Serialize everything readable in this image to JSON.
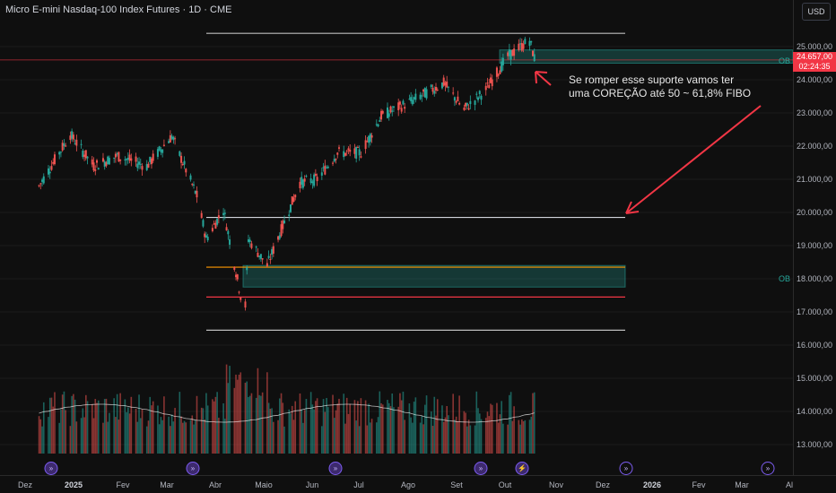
{
  "header": {
    "title": "Micro E-mini Nasdaq-100 Index Futures · 1D · CME",
    "currency_label": "USD"
  },
  "price_axis": {
    "labels": [
      "25.000,00",
      "24.000,00",
      "23.000,00",
      "22.000,00",
      "21.000,00",
      "20.000,00",
      "19.000,00",
      "18.000,00",
      "17.000,00",
      "16.000,00",
      "15.000,00",
      "14.000,00",
      "13.000,00"
    ]
  },
  "last_price": {
    "price": "24.657,00",
    "countdown": "02:24:35"
  },
  "time_axis": {
    "labels": [
      "Dez",
      "2025",
      "Fev",
      "Mar",
      "Abr",
      "Maio",
      "Jun",
      "Jul",
      "Ago",
      "Set",
      "Out",
      "Nov",
      "Dez",
      "2026",
      "Fev",
      "Mar",
      "Al"
    ]
  },
  "annotation": {
    "line1": "Se romper esse suporte vamos ter",
    "line2": "uma COREÇÃO até 50 ~ 61,8% FIBO"
  },
  "zones": {
    "upper_label": "OB",
    "lower_label": "OB"
  },
  "colors": {
    "up": "#26a69a",
    "down": "#ef5350",
    "annotation_arrow": "#f23645",
    "orange_line": "#ff9800",
    "red_line": "#f23645",
    "white_line": "#d1d4dc"
  },
  "event_icons": [
    "dividend-icon",
    "dividend-icon",
    "dividend-icon",
    "dividend-icon",
    "flash-icon",
    "dividend-icon",
    "dividend-icon"
  ],
  "chart_data": {
    "type": "candlestick",
    "ylim": [
      12600,
      25900
    ],
    "horizontal_levels": [
      25400,
      24600,
      19850,
      18350,
      17450,
      16450
    ],
    "ob_zones": [
      [
        24500,
        24900
      ],
      [
        17750,
        18400
      ]
    ],
    "close_path": [
      {
        "x": "2024-11-26",
        "y": 20800
      },
      {
        "x": "2024-12-16",
        "y": 22350
      },
      {
        "x": "2024-12-31",
        "y": 21400
      },
      {
        "x": "2025-01-15",
        "y": 21700
      },
      {
        "x": "2025-02-03",
        "y": 21400
      },
      {
        "x": "2025-02-19",
        "y": 22300
      },
      {
        "x": "2025-03-07",
        "y": 20500
      },
      {
        "x": "2025-03-13",
        "y": 19200
      },
      {
        "x": "2025-03-24",
        "y": 20100
      },
      {
        "x": "2025-04-04",
        "y": 17500
      },
      {
        "x": "2025-04-07",
        "y": 17200
      },
      {
        "x": "2025-04-09",
        "y": 19200
      },
      {
        "x": "2025-04-21",
        "y": 18400
      },
      {
        "x": "2025-05-12",
        "y": 20900
      },
      {
        "x": "2025-05-23",
        "y": 21000
      },
      {
        "x": "2025-06-05",
        "y": 21800
      },
      {
        "x": "2025-06-20",
        "y": 21800
      },
      {
        "x": "2025-07-03",
        "y": 22900
      },
      {
        "x": "2025-07-24",
        "y": 23400
      },
      {
        "x": "2025-08-12",
        "y": 23900
      },
      {
        "x": "2025-08-25",
        "y": 23100
      },
      {
        "x": "2025-09-08",
        "y": 23700
      },
      {
        "x": "2025-09-22",
        "y": 24700
      },
      {
        "x": "2025-10-06",
        "y": 25200
      },
      {
        "x": "2025-10-09",
        "y": 24657
      }
    ],
    "volume_ma_visible": true
  }
}
